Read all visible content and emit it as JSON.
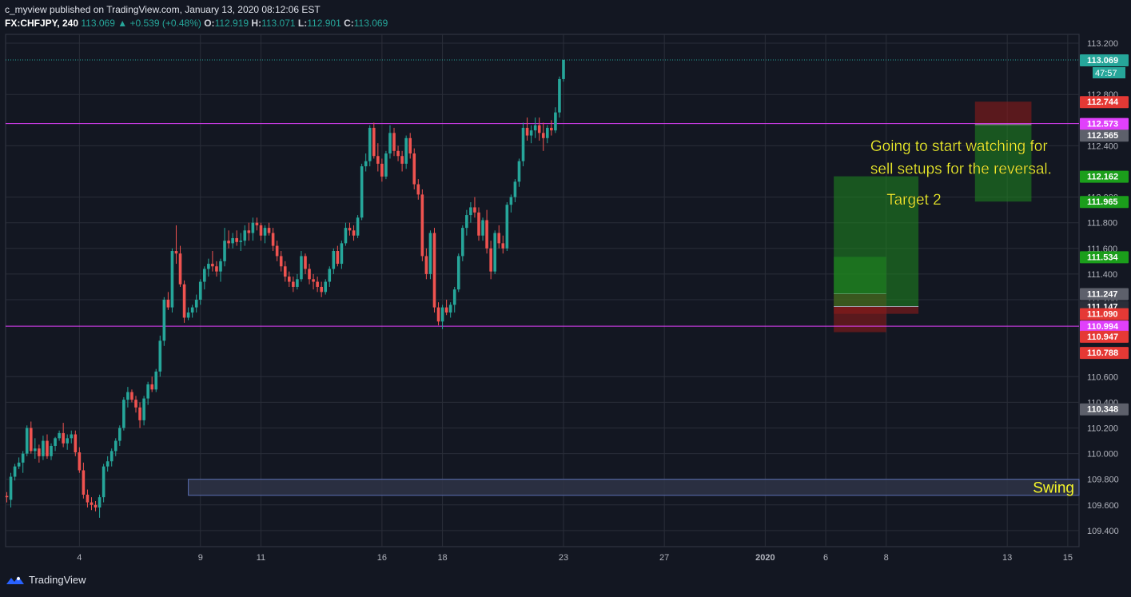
{
  "header": {
    "publisher": "c_myview",
    "published_text": "published on TradingView.com, January 13, 2020 08:12:06 EST",
    "symbol": "FX:CHFJPY, 240",
    "last": "113.069",
    "change_text": "+0.539 (+0.48%)",
    "o_label": "O:",
    "o_value": "112.919",
    "h_label": "H:",
    "h_value": "113.071",
    "l_label": "L:",
    "l_value": "112.901",
    "c_label": "C:",
    "c_value": "113.069"
  },
  "footer": {
    "brand": "TradingView",
    "logo_icon": "tradingview-logo-icon"
  },
  "colors": {
    "background": "#131722",
    "grid": "#2a2e39",
    "bull": "#26a69a",
    "bear": "#ef5350",
    "magenta": "#e040fb",
    "annotation": "#f5f52a",
    "green_zone": "#1f8a1f",
    "red_zone": "#8b1a1a"
  },
  "chart_data": {
    "type": "candlestick",
    "ylim": [
      109.3,
      113.2
    ],
    "y_ticks": [
      "113.200",
      "112.800",
      "112.400",
      "112.000",
      "111.800",
      "111.600",
      "111.400",
      "111.200",
      "110.600",
      "110.400",
      "110.200",
      "110.000",
      "109.800",
      "109.600",
      "109.400"
    ],
    "x_ticks": [
      {
        "label": "4",
        "bar": 18
      },
      {
        "label": "9",
        "bar": 48
      },
      {
        "label": "11",
        "bar": 63
      },
      {
        "label": "16",
        "bar": 93
      },
      {
        "label": "18",
        "bar": 108
      },
      {
        "label": "23",
        "bar": 138
      },
      {
        "label": "27",
        "bar": 163
      },
      {
        "label": "2020",
        "bar": 188
      },
      {
        "label": "6",
        "bar": 203
      },
      {
        "label": "8",
        "bar": 218
      },
      {
        "label": "13",
        "bar": 248
      },
      {
        "label": "15",
        "bar": 263
      }
    ],
    "candles": [
      [
        109.67,
        109.7,
        109.62,
        109.66
      ],
      [
        109.64,
        109.85,
        109.58,
        109.82
      ],
      [
        109.82,
        109.92,
        109.79,
        109.9
      ],
      [
        109.9,
        109.97,
        109.88,
        109.93
      ],
      [
        109.93,
        110.02,
        109.85,
        110.0
      ],
      [
        110.0,
        110.22,
        109.98,
        110.2
      ],
      [
        110.2,
        110.25,
        110.0,
        110.02
      ],
      [
        110.02,
        110.12,
        109.96,
        110.04
      ],
      [
        110.04,
        110.07,
        109.93,
        109.98
      ],
      [
        109.98,
        110.14,
        109.95,
        110.1
      ],
      [
        110.1,
        110.15,
        109.96,
        109.98
      ],
      [
        109.98,
        110.08,
        109.95,
        110.06
      ],
      [
        110.06,
        110.13,
        110.02,
        110.12
      ],
      [
        110.12,
        110.18,
        110.1,
        110.16
      ],
      [
        110.16,
        110.24,
        110.05,
        110.08
      ],
      [
        110.08,
        110.15,
        110.03,
        110.12
      ],
      [
        110.12,
        110.18,
        110.08,
        110.15
      ],
      [
        110.15,
        110.18,
        109.98,
        110.01
      ],
      [
        110.01,
        110.05,
        109.85,
        109.87
      ],
      [
        109.87,
        109.93,
        109.65,
        109.68
      ],
      [
        109.68,
        109.72,
        109.58,
        109.62
      ],
      [
        109.62,
        109.66,
        109.56,
        109.6
      ],
      [
        109.6,
        109.63,
        109.55,
        109.58
      ],
      [
        109.58,
        109.68,
        109.5,
        109.66
      ],
      [
        109.66,
        109.92,
        109.62,
        109.9
      ],
      [
        109.9,
        109.98,
        109.86,
        109.94
      ],
      [
        109.94,
        110.04,
        109.9,
        110.02
      ],
      [
        110.02,
        110.12,
        109.98,
        110.1
      ],
      [
        110.1,
        110.22,
        110.06,
        110.2
      ],
      [
        110.2,
        110.44,
        110.18,
        110.42
      ],
      [
        110.42,
        110.52,
        110.36,
        110.48
      ],
      [
        110.48,
        110.5,
        110.4,
        110.42
      ],
      [
        110.42,
        110.45,
        110.32,
        110.36
      ],
      [
        110.36,
        110.4,
        110.2,
        110.26
      ],
      [
        110.26,
        110.45,
        110.22,
        110.43
      ],
      [
        110.43,
        110.56,
        110.38,
        110.54
      ],
      [
        110.54,
        110.6,
        110.48,
        110.5
      ],
      [
        110.5,
        110.66,
        110.48,
        110.64
      ],
      [
        110.64,
        110.92,
        110.6,
        110.88
      ],
      [
        110.88,
        111.22,
        110.84,
        111.2
      ],
      [
        111.2,
        111.26,
        111.12,
        111.14
      ],
      [
        111.14,
        111.6,
        111.1,
        111.58
      ],
      [
        111.58,
        111.78,
        111.48,
        111.56
      ],
      [
        111.56,
        111.62,
        111.3,
        111.32
      ],
      [
        111.32,
        111.35,
        111.02,
        111.06
      ],
      [
        111.06,
        111.14,
        111.04,
        111.1
      ],
      [
        111.1,
        111.16,
        111.06,
        111.14
      ],
      [
        111.14,
        111.24,
        111.1,
        111.2
      ],
      [
        111.2,
        111.36,
        111.16,
        111.34
      ],
      [
        111.34,
        111.46,
        111.28,
        111.44
      ],
      [
        111.44,
        111.52,
        111.38,
        111.48
      ],
      [
        111.48,
        111.58,
        111.42,
        111.46
      ],
      [
        111.46,
        111.5,
        111.38,
        111.42
      ],
      [
        111.42,
        111.52,
        111.34,
        111.5
      ],
      [
        111.5,
        111.76,
        111.46,
        111.66
      ],
      [
        111.66,
        111.74,
        111.6,
        111.64
      ],
      [
        111.64,
        111.72,
        111.6,
        111.68
      ],
      [
        111.68,
        111.74,
        111.62,
        111.65
      ],
      [
        111.65,
        111.72,
        111.58,
        111.66
      ],
      [
        111.66,
        111.78,
        111.62,
        111.74
      ],
      [
        111.74,
        111.8,
        111.66,
        111.72
      ],
      [
        111.72,
        111.84,
        111.66,
        111.8
      ],
      [
        111.8,
        111.84,
        111.74,
        111.78
      ],
      [
        111.78,
        111.8,
        111.66,
        111.7
      ],
      [
        111.7,
        111.78,
        111.64,
        111.76
      ],
      [
        111.76,
        111.8,
        111.7,
        111.72
      ],
      [
        111.72,
        111.76,
        111.58,
        111.62
      ],
      [
        111.62,
        111.66,
        111.5,
        111.54
      ],
      [
        111.54,
        111.58,
        111.42,
        111.46
      ],
      [
        111.46,
        111.5,
        111.34,
        111.38
      ],
      [
        111.38,
        111.42,
        111.3,
        111.34
      ],
      [
        111.34,
        111.38,
        111.26,
        111.3
      ],
      [
        111.3,
        111.4,
        111.28,
        111.36
      ],
      [
        111.36,
        111.58,
        111.34,
        111.54
      ],
      [
        111.54,
        111.56,
        111.4,
        111.44
      ],
      [
        111.44,
        111.48,
        111.32,
        111.36
      ],
      [
        111.36,
        111.4,
        111.28,
        111.34
      ],
      [
        111.34,
        111.38,
        111.26,
        111.3
      ],
      [
        111.3,
        111.34,
        111.22,
        111.26
      ],
      [
        111.26,
        111.36,
        111.24,
        111.34
      ],
      [
        111.34,
        111.46,
        111.3,
        111.44
      ],
      [
        111.44,
        111.6,
        111.4,
        111.58
      ],
      [
        111.58,
        111.62,
        111.46,
        111.48
      ],
      [
        111.48,
        111.66,
        111.44,
        111.64
      ],
      [
        111.64,
        111.8,
        111.62,
        111.76
      ],
      [
        111.76,
        111.8,
        111.7,
        111.74
      ],
      [
        111.74,
        111.78,
        111.66,
        111.7
      ],
      [
        111.7,
        111.86,
        111.68,
        111.84
      ],
      [
        111.84,
        112.26,
        111.82,
        112.24
      ],
      [
        112.24,
        112.34,
        112.2,
        112.28
      ],
      [
        112.28,
        112.56,
        112.24,
        112.54
      ],
      [
        112.54,
        112.58,
        112.3,
        112.32
      ],
      [
        112.32,
        112.42,
        112.2,
        112.26
      ],
      [
        112.26,
        112.3,
        112.12,
        112.16
      ],
      [
        112.16,
        112.36,
        112.14,
        112.34
      ],
      [
        112.34,
        112.56,
        112.3,
        112.5
      ],
      [
        112.5,
        112.54,
        112.32,
        112.36
      ],
      [
        112.36,
        112.4,
        112.28,
        112.32
      ],
      [
        112.32,
        112.36,
        112.2,
        112.26
      ],
      [
        112.26,
        112.48,
        112.22,
        112.46
      ],
      [
        112.46,
        112.5,
        112.3,
        112.34
      ],
      [
        112.34,
        112.38,
        112.06,
        112.1
      ],
      [
        112.1,
        112.14,
        111.98,
        112.02
      ],
      [
        112.02,
        112.06,
        111.5,
        111.54
      ],
      [
        111.54,
        111.6,
        111.36,
        111.4
      ],
      [
        111.4,
        111.74,
        111.36,
        111.72
      ],
      [
        111.72,
        111.76,
        111.1,
        111.14
      ],
      [
        111.14,
        111.18,
        111.0,
        111.03
      ],
      [
        111.03,
        111.16,
        110.97,
        111.14
      ],
      [
        111.14,
        111.2,
        111.08,
        111.1
      ],
      [
        111.1,
        111.18,
        111.06,
        111.16
      ],
      [
        111.16,
        111.3,
        111.1,
        111.28
      ],
      [
        111.28,
        111.56,
        111.26,
        111.54
      ],
      [
        111.54,
        111.78,
        111.5,
        111.76
      ],
      [
        111.76,
        111.9,
        111.7,
        111.86
      ],
      [
        111.86,
        111.96,
        111.8,
        111.92
      ],
      [
        111.92,
        112.0,
        111.84,
        111.88
      ],
      [
        111.88,
        111.92,
        111.66,
        111.7
      ],
      [
        111.7,
        111.84,
        111.66,
        111.82
      ],
      [
        111.82,
        111.9,
        111.56,
        111.6
      ],
      [
        111.6,
        111.66,
        111.36,
        111.42
      ],
      [
        111.42,
        111.74,
        111.4,
        111.72
      ],
      [
        111.72,
        111.78,
        111.6,
        111.64
      ],
      [
        111.64,
        111.7,
        111.56,
        111.6
      ],
      [
        111.6,
        111.96,
        111.58,
        111.94
      ],
      [
        111.94,
        112.02,
        111.88,
        112.0
      ],
      [
        112.0,
        112.14,
        111.96,
        112.12
      ],
      [
        112.12,
        112.3,
        112.08,
        112.28
      ],
      [
        112.28,
        112.58,
        112.24,
        112.54
      ],
      [
        112.54,
        112.62,
        112.44,
        112.48
      ],
      [
        112.48,
        112.56,
        112.42,
        112.52
      ],
      [
        112.52,
        112.62,
        112.46,
        112.56
      ],
      [
        112.56,
        112.62,
        112.44,
        112.5
      ],
      [
        112.5,
        112.58,
        112.36,
        112.46
      ],
      [
        112.46,
        112.56,
        112.42,
        112.54
      ],
      [
        112.54,
        112.6,
        112.48,
        112.52
      ],
      [
        112.52,
        112.7,
        112.5,
        112.66
      ],
      [
        112.66,
        112.94,
        112.62,
        112.92
      ],
      [
        112.92,
        113.07,
        112.9,
        113.07
      ]
    ],
    "horizontal_lines": [
      {
        "name": "resistance",
        "price": 112.573,
        "color": "#e040fb"
      },
      {
        "name": "support",
        "price": 110.994,
        "color": "#e040fb"
      },
      {
        "name": "last-price",
        "price": 113.069,
        "color": "#26a69a",
        "dotted": true
      }
    ],
    "price_labels": [
      {
        "text": "113.069",
        "price": 113.069,
        "bg": "#26a69a",
        "sub": "47:57"
      },
      {
        "text": "112.744",
        "price": 112.744,
        "bg": "#e53935"
      },
      {
        "text": "112.573",
        "price": 112.573,
        "bg": "#e040fb"
      },
      {
        "text": "112.565",
        "price": 112.482,
        "bg": "#5d606b"
      },
      {
        "text": "112.162",
        "price": 112.162,
        "bg": "#1b9e1b"
      },
      {
        "text": "111.965",
        "price": 111.965,
        "bg": "#1b9e1b"
      },
      {
        "text": "111.534",
        "price": 111.534,
        "bg": "#1b9e1b"
      },
      {
        "text": "111.247",
        "price": 111.247,
        "bg": "#5d606b"
      },
      {
        "text": "111.147",
        "price": 111.147,
        "bg": "#2a2e39"
      },
      {
        "text": "111.090",
        "price": 111.09,
        "bg": "#e53935"
      },
      {
        "text": "110.994",
        "price": 110.994,
        "bg": "#e040fb"
      },
      {
        "text": "110.947",
        "price": 110.914,
        "bg": "#e53935"
      },
      {
        "text": "110.788",
        "price": 110.788,
        "bg": "#e53935"
      },
      {
        "text": "110.348",
        "price": 110.348,
        "bg": "#5d606b"
      }
    ],
    "positions": [
      {
        "name": "long-1",
        "bar_start": 205,
        "bar_end": 218,
        "entry": 111.247,
        "target": 111.534,
        "stop": 110.947
      },
      {
        "name": "long-2",
        "bar_start": 205,
        "bar_end": 226,
        "entry": 111.147,
        "target": 112.162,
        "stop": 111.09
      },
      {
        "name": "short-1",
        "bar_start": 240,
        "bar_end": 254,
        "entry": 112.565,
        "target": 111.965,
        "stop": 112.744
      }
    ],
    "zones": [
      {
        "name": "swing-zone",
        "bar_start": 45,
        "bar_end": 300,
        "top": 109.8,
        "bottom": 109.675,
        "label": "Swing"
      }
    ],
    "annotations": [
      {
        "text": "Going to start watching for",
        "bar": 221,
        "price": 112.36,
        "size": 19
      },
      {
        "text": "sell setups for the reversal.",
        "bar": 221,
        "price": 112.18,
        "size": 19
      },
      {
        "text": "Target 2",
        "bar": 225,
        "price": 111.94,
        "size": 19
      }
    ]
  }
}
